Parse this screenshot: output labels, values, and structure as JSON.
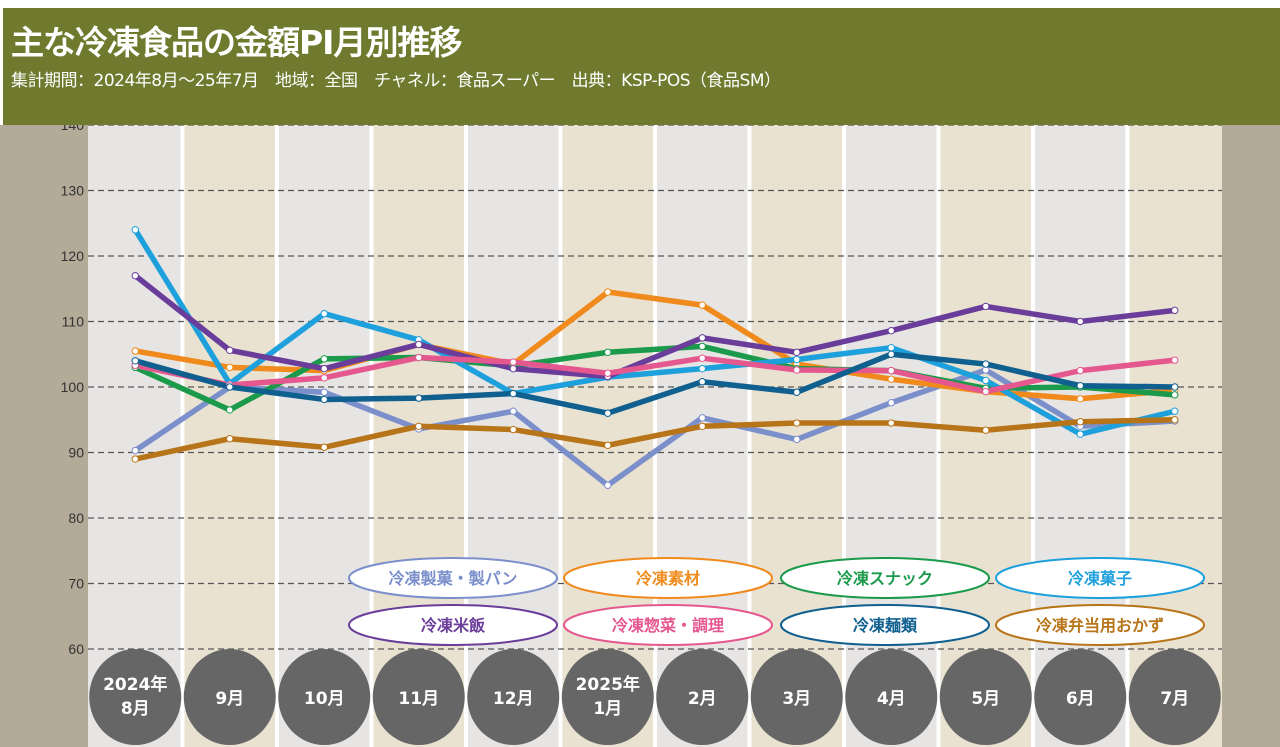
{
  "chart_data": {
    "type": "line",
    "title": "主な冷凍食品の金額PI月別推移",
    "subtitle": "集計期間：2024年8月～25年7月　地域：全国　チャネル：食品スーパー　出典：KSP-POS（食品SM）",
    "xlabel": "",
    "ylabel": "",
    "ylim": [
      60,
      140
    ],
    "yticks": [
      60,
      70,
      80,
      90,
      100,
      110,
      120,
      130,
      140
    ],
    "grid": true,
    "legend_position": "bottom",
    "categories": [
      [
        "2024年",
        "8月"
      ],
      [
        "9月"
      ],
      [
        "10月"
      ],
      [
        "11月"
      ],
      [
        "12月"
      ],
      [
        "2025年",
        "1月"
      ],
      [
        "2月"
      ],
      [
        "3月"
      ],
      [
        "4月"
      ],
      [
        "5月"
      ],
      [
        "6月"
      ],
      [
        "7月"
      ]
    ],
    "series": [
      {
        "name": "冷凍製菓・製パン",
        "color": "#7b8fcb",
        "values": [
          90.3,
          100,
          99.2,
          93.6,
          96.3,
          85,
          95.3,
          92,
          97.6,
          102.6,
          94,
          94.8
        ]
      },
      {
        "name": "冷凍素材",
        "color": "#f08a1c",
        "values": [
          105.5,
          103,
          102.5,
          106.5,
          103.5,
          114.5,
          112.5,
          103.5,
          101.2,
          99.3,
          98.2,
          99.5
        ]
      },
      {
        "name": "冷凍スナック",
        "color": "#1a9a4a",
        "values": [
          103,
          96.5,
          104.3,
          104.5,
          103.2,
          105.3,
          106.2,
          102.8,
          102.5,
          99.8,
          100,
          98.8
        ]
      },
      {
        "name": "冷凍菓子",
        "color": "#1ea0dc",
        "values": [
          124,
          100.5,
          111.2,
          107.2,
          99,
          101.5,
          102.8,
          104.2,
          106,
          101,
          92.8,
          96.3
        ]
      },
      {
        "name": "冷凍米飯",
        "color": "#6a3d9a",
        "values": [
          117,
          105.6,
          102.8,
          106.5,
          102.8,
          101.6,
          107.5,
          105.3,
          108.6,
          112.3,
          110,
          111.7
        ]
      },
      {
        "name": "冷凍惣菜・調理",
        "color": "#e5578f",
        "values": [
          103.3,
          100.3,
          101.4,
          104.5,
          103.8,
          102.1,
          104.4,
          102.6,
          102.5,
          99.3,
          102.5,
          104.1
        ]
      },
      {
        "name": "冷凍麺類",
        "color": "#0f5f8f",
        "values": [
          104,
          100,
          98.1,
          98.3,
          99,
          96,
          100.8,
          99.2,
          105,
          103.5,
          100.2,
          100
        ]
      },
      {
        "name": "冷凍弁当用おかず",
        "color": "#b87418",
        "values": [
          89,
          92.1,
          90.8,
          94,
          93.5,
          91.1,
          94,
          94.5,
          94.5,
          93.4,
          94.7,
          95
        ]
      }
    ]
  },
  "colors": {
    "header": "#6f7a2e",
    "side": "#b3aa98",
    "column_light": "#e7e5e3",
    "column_beige": "#e9e2d1",
    "month_circle": "#666666"
  }
}
